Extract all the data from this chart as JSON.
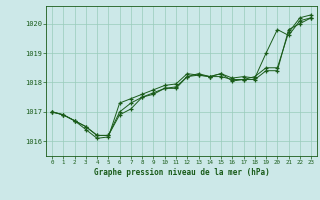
{
  "title": "Graphe pression niveau de la mer (hPa)",
  "bg_color": "#cce8e8",
  "line_color": "#1a5c1a",
  "marker_color": "#1a5c1a",
  "grid_color": "#99ccbb",
  "xlim": [
    -0.5,
    23.5
  ],
  "ylim": [
    1015.5,
    1020.6
  ],
  "yticks": [
    1016,
    1017,
    1018,
    1019,
    1020
  ],
  "xticks": [
    0,
    1,
    2,
    3,
    4,
    5,
    6,
    7,
    8,
    9,
    10,
    11,
    12,
    13,
    14,
    15,
    16,
    17,
    18,
    19,
    20,
    21,
    22,
    23
  ],
  "series": [
    {
      "x": [
        0,
        1,
        2,
        3,
        4,
        5,
        6,
        7,
        8,
        9,
        10,
        11,
        12,
        13,
        14,
        15,
        16,
        17,
        18,
        19,
        20,
        21,
        22,
        23
      ],
      "y": [
        1017.0,
        1016.9,
        1016.7,
        1016.5,
        1016.2,
        1016.2,
        1017.0,
        1017.3,
        1017.5,
        1017.65,
        1017.8,
        1017.85,
        1018.2,
        1018.25,
        1018.2,
        1018.3,
        1018.05,
        1018.1,
        1018.1,
        1018.4,
        1018.4,
        1019.8,
        1020.0,
        1020.2
      ]
    },
    {
      "x": [
        0,
        1,
        2,
        3,
        4,
        5,
        6,
        7,
        8,
        9,
        10,
        11,
        12,
        13,
        14,
        15,
        16,
        17,
        18,
        19,
        20,
        21,
        22,
        23
      ],
      "y": [
        1017.0,
        1016.9,
        1016.7,
        1016.4,
        1016.1,
        1016.15,
        1017.3,
        1017.45,
        1017.6,
        1017.75,
        1017.9,
        1017.95,
        1018.3,
        1018.25,
        1018.2,
        1018.3,
        1018.15,
        1018.2,
        1018.15,
        1019.0,
        1019.8,
        1019.6,
        1020.1,
        1020.2
      ]
    },
    {
      "x": [
        0,
        1,
        2,
        3,
        4,
        5,
        6,
        7,
        8,
        9,
        10,
        11,
        12,
        13,
        14,
        15,
        16,
        17,
        18,
        19,
        20,
        21,
        22,
        23
      ],
      "y": [
        1017.0,
        1016.9,
        1016.7,
        1016.5,
        1016.2,
        1016.2,
        1016.9,
        1017.1,
        1017.5,
        1017.6,
        1017.8,
        1017.8,
        1018.2,
        1018.3,
        1018.2,
        1018.2,
        1018.1,
        1018.1,
        1018.2,
        1018.5,
        1018.5,
        1019.7,
        1020.2,
        1020.3
      ]
    }
  ]
}
